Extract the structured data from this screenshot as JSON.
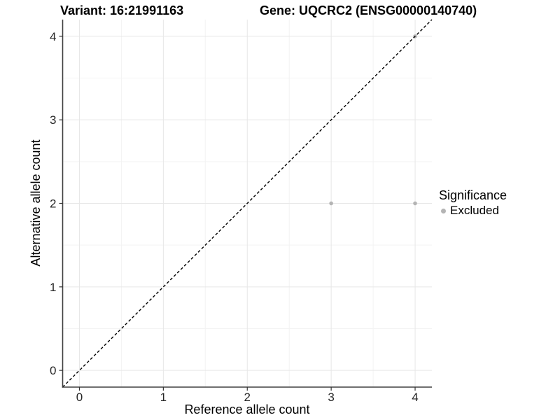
{
  "titles": {
    "variant": "Variant: 16:21991163",
    "gene": "Gene: UQCRC2 (ENSG00000140740)"
  },
  "legend": {
    "title": "Significance",
    "items": [
      {
        "label": "Excluded",
        "color": "#b4b4b4"
      }
    ]
  },
  "chart_data": {
    "type": "scatter",
    "xlabel": "Reference allele count",
    "ylabel": "Alternative allele count",
    "xlim": [
      -0.2,
      4.2
    ],
    "ylim": [
      -0.2,
      4.2
    ],
    "xticks": [
      0,
      1,
      2,
      3,
      4
    ],
    "yticks": [
      0,
      1,
      2,
      3,
      4
    ],
    "minor_xticks": [
      0.5,
      1.5,
      2.5,
      3.5
    ],
    "minor_yticks": [
      0.5,
      1.5,
      2.5,
      3.5
    ],
    "grid": true,
    "legend_position": "right",
    "series": [
      {
        "name": "Excluded",
        "color": "#b4b4b4",
        "points": [
          {
            "x": 3,
            "y": 2
          },
          {
            "x": 4,
            "y": 2
          },
          {
            "x": 4,
            "y": 4
          }
        ]
      }
    ],
    "identity_line": {
      "slope": 1,
      "intercept": 0,
      "style": "dashed",
      "color": "#000000"
    }
  },
  "colors": {
    "point": "#b4b4b4",
    "grid_major": "#e7e7e7",
    "grid_minor": "#f3f3f3",
    "axis_line": "#404040",
    "tick_mark": "#333333",
    "tick_label": "#262626",
    "background": "#ffffff"
  }
}
